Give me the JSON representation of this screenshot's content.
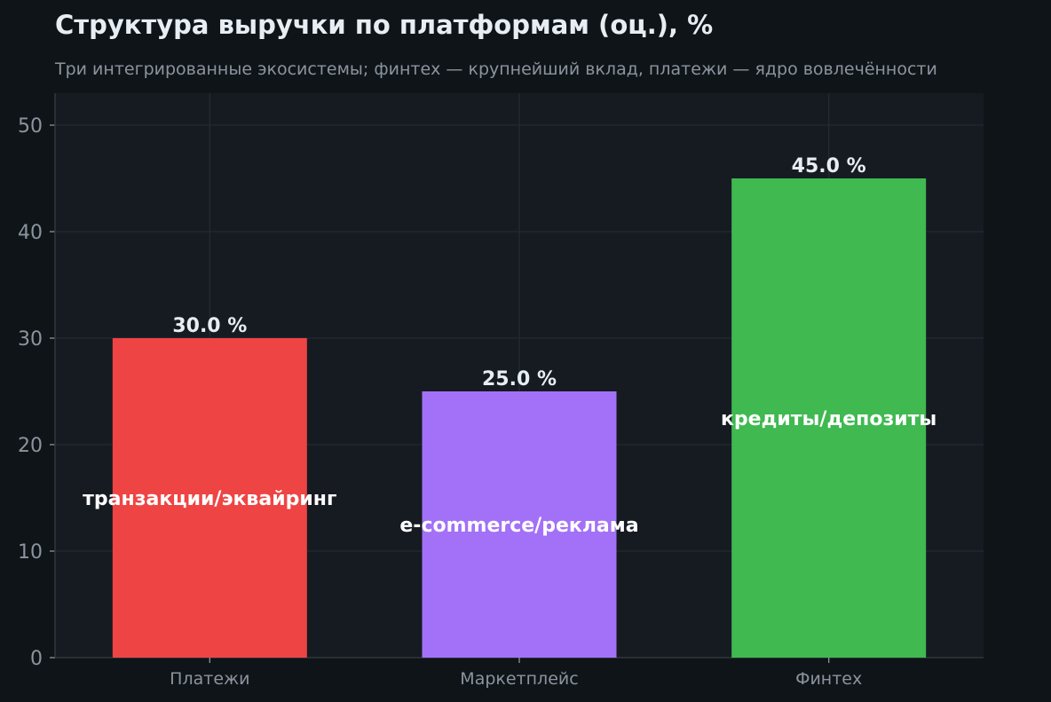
{
  "colors": {
    "page_bg": "#0f1418",
    "plot_bg": "#161b22",
    "grid": "#232a33",
    "axis": "#30363d",
    "text_primary": "#e6edf3",
    "text_muted": "#8b949e"
  },
  "chart_data": {
    "type": "bar",
    "title": "Структура выручки по платформам (оц.), %",
    "subtitle": "Три интегрированные экосистемы; финтех — крупнейший вклад, платежи — ядро вовлечённости",
    "xlabel": "",
    "ylabel": "",
    "ylim": [
      0,
      53
    ],
    "yticks": [
      0,
      10,
      20,
      30,
      40,
      50
    ],
    "grid": true,
    "categories": [
      "Платежи",
      "Маркетплейс",
      "Финтех"
    ],
    "values": [
      30.0,
      25.0,
      45.0
    ],
    "value_labels": [
      "30.0 %",
      "25.0 %",
      "45.0 %"
    ],
    "inner_labels": [
      "транзакции/эквайринг",
      "e-commerce/реклама",
      "кредиты/депозиты"
    ],
    "bar_colors": [
      "#ef4444",
      "#a371f7",
      "#3fb950"
    ]
  }
}
